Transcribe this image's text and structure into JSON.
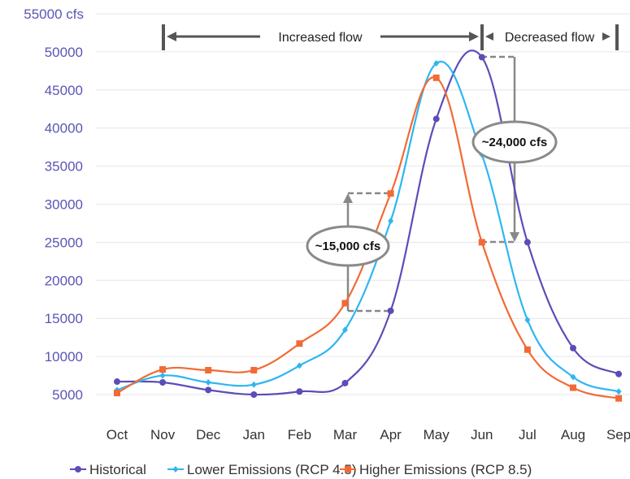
{
  "chart_data": {
    "type": "line",
    "title": "",
    "xlabel": "",
    "ylabel": "",
    "y_unit": "cfs",
    "categories": [
      "Oct",
      "Nov",
      "Dec",
      "Jan",
      "Feb",
      "Mar",
      "Apr",
      "May",
      "Jun",
      "Jul",
      "Aug",
      "Sep"
    ],
    "ylim": [
      5000,
      55000
    ],
    "yticks": [
      "5000",
      "10000",
      "15000",
      "20000",
      "25000",
      "30000",
      "35000",
      "40000",
      "45000",
      "50000",
      "55000 cfs"
    ],
    "grid": true,
    "legend_position": "bottom",
    "series": [
      {
        "name": "Historical",
        "color": "#5b4db8",
        "marker": "circle",
        "values": [
          6700,
          6600,
          5600,
          5000,
          5400,
          6500,
          16000,
          41200,
          49300,
          25000,
          11100,
          7700
        ]
      },
      {
        "name": "Lower Emissions (RCP 4.5)",
        "color": "#2fb6f0",
        "marker": "diamond",
        "values": [
          5600,
          7500,
          6600,
          6300,
          8800,
          13500,
          27800,
          48500,
          36500,
          14800,
          7300,
          5400
        ]
      },
      {
        "name": "Higher Emissions (RCP 8.5)",
        "color": "#f26a35",
        "marker": "square",
        "values": [
          5200,
          8300,
          8200,
          8200,
          11700,
          17000,
          31400,
          46600,
          25000,
          10900,
          5900,
          4500
        ]
      }
    ],
    "annotations": {
      "increased_label": "Increased flow",
      "decreased_label": "Decreased flow",
      "callout_increase": "~15,000 cfs",
      "callout_decrease": "~24,000 cfs"
    }
  },
  "colors": {
    "historical": "#5b4db8",
    "rcp45": "#2fb6f0",
    "rcp85": "#f26a35",
    "axis_text": "#5b55b5",
    "annotation": "#555555"
  }
}
